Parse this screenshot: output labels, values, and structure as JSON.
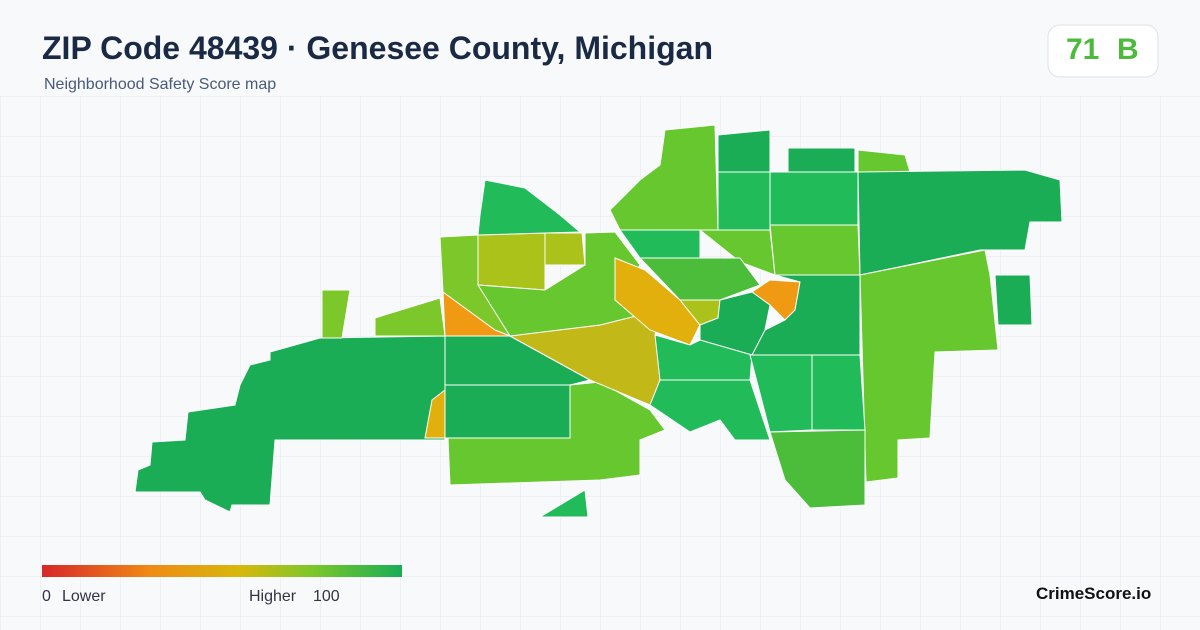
{
  "header": {
    "title": "ZIP Code 48439 · Genesee County, Michigan",
    "subtitle": "Neighborhood Safety Score map"
  },
  "score": {
    "value": 71,
    "grade": "B"
  },
  "legend": {
    "min": 0,
    "min_label": "Lower",
    "max_label": "Higher",
    "max": 100
  },
  "brand": "CrimeScore.io"
}
